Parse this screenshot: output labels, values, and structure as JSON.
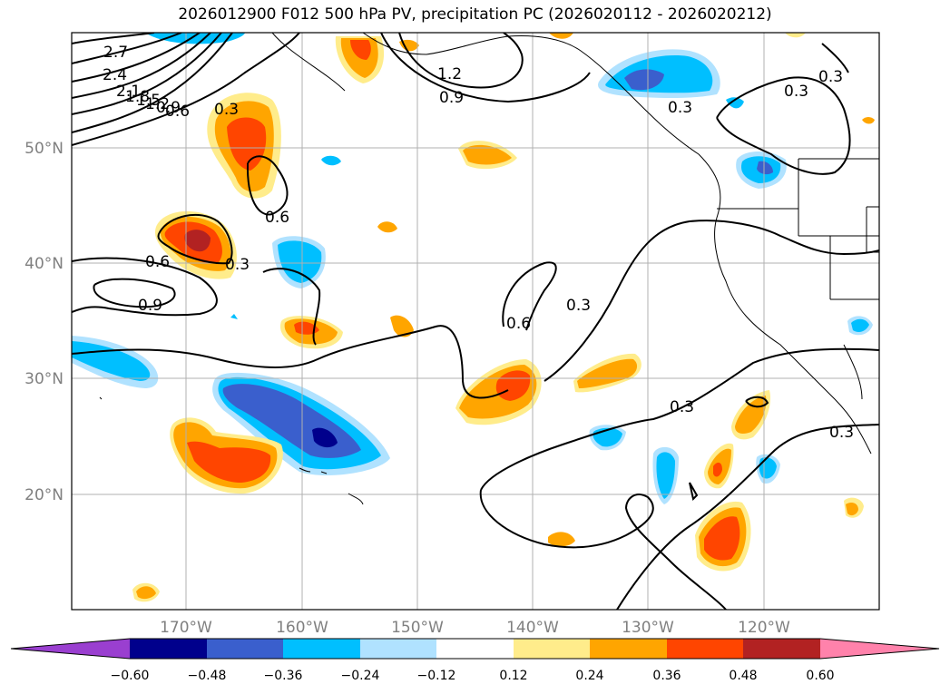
{
  "title": "2026012900 F012 500 hPa PV, precipitation PC (2026020112 - 2026020212)",
  "lat_ticks": [
    "50°N",
    "40°N",
    "30°N",
    "20°N"
  ],
  "lon_ticks": [
    "170°W",
    "160°W",
    "150°W",
    "140°W",
    "130°W",
    "120°W"
  ],
  "colorbar": {
    "labels": [
      "−0.60",
      "−0.48",
      "−0.36",
      "−0.24",
      "−0.12",
      "0.12",
      "0.24",
      "0.36",
      "0.48",
      "0.60"
    ],
    "colors": [
      "#9a3fd0",
      "#00008c",
      "#3a5fcd",
      "#00bfff",
      "#b0e2ff",
      "#ffffff",
      "#ffec8b",
      "#ffa500",
      "#ff4500",
      "#b22222",
      "#ff82ab"
    ]
  },
  "contour_labels": [
    "2.7",
    "2.4",
    "2.1",
    "1.8",
    "1.5",
    "1.2",
    "0.9",
    "0.6",
    "0.3",
    "1.2",
    "0.9",
    "0.3",
    "0.3",
    "0.3",
    "0.6",
    "0.3",
    "0.6",
    "0.9",
    "0.6",
    "0.3",
    "0.3",
    "0.3"
  ]
}
